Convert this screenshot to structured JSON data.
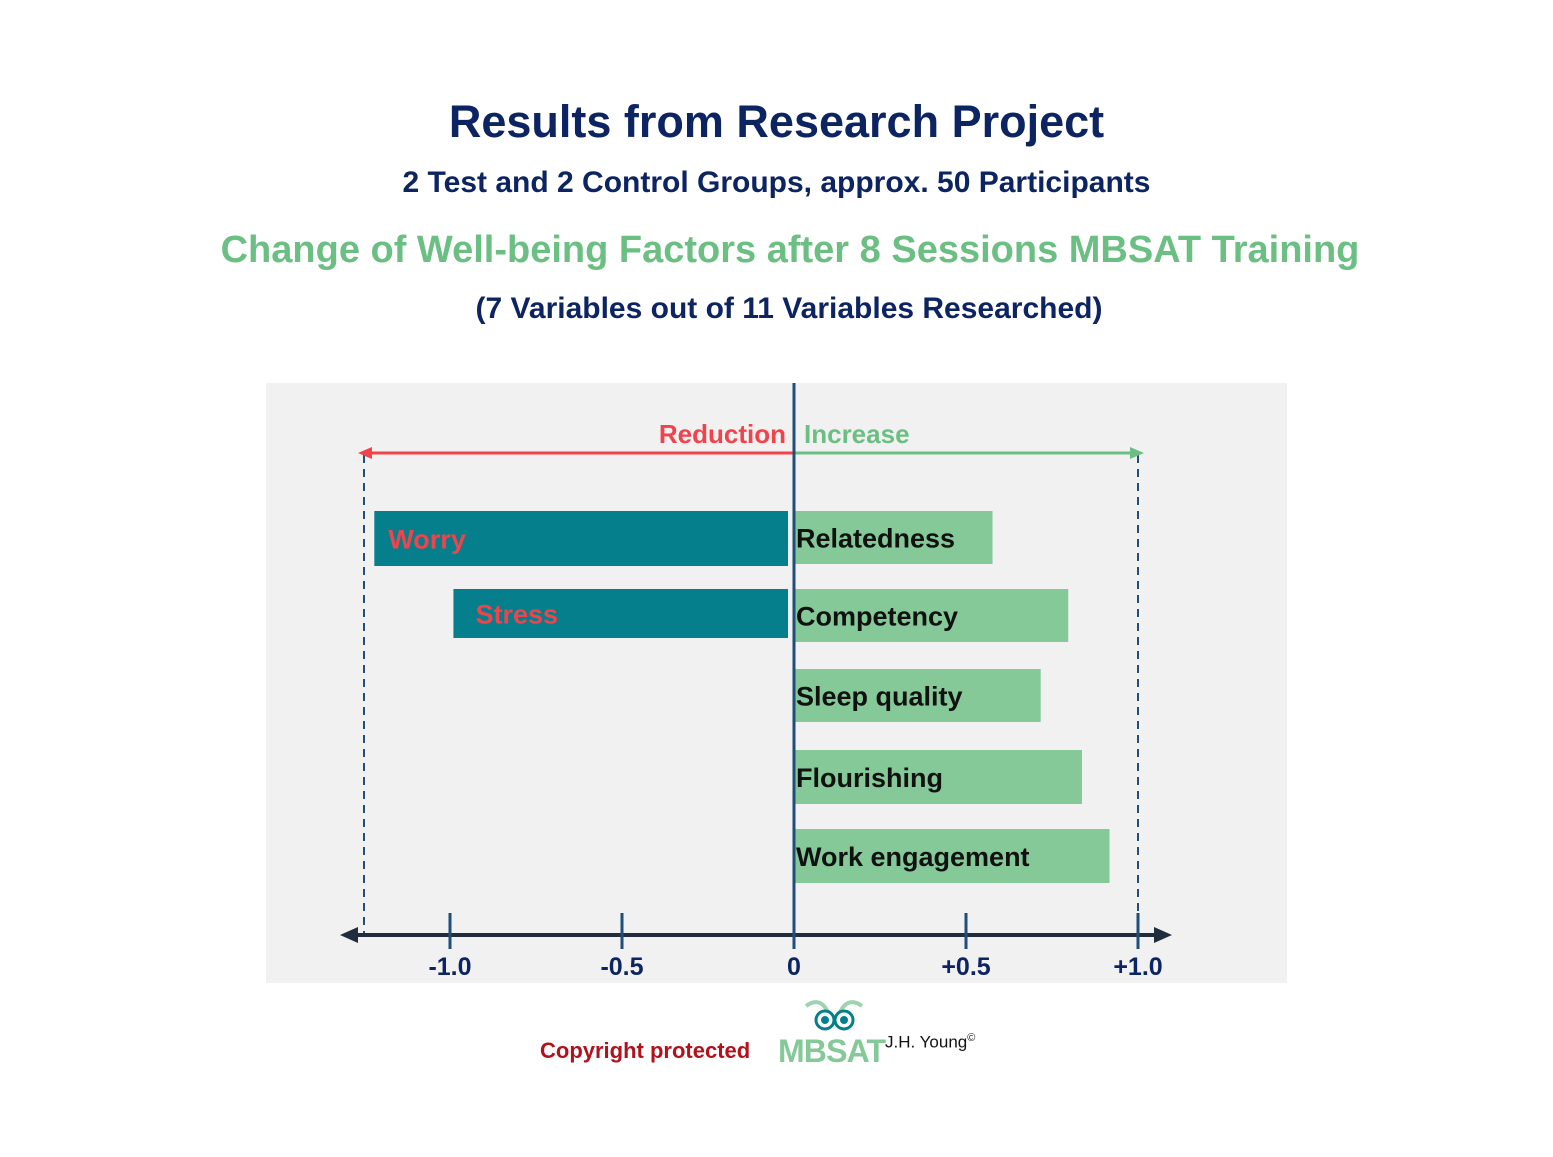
{
  "header": {
    "title": "Results from Research Project",
    "subtitle": "2 Test and 2 Control Groups, approx. 50 Participants",
    "heading": "Change of Well-being Factors after 8 Sessions MBSAT Training",
    "note": "(7 Variables out of 11 Variables Researched)"
  },
  "chart_data": {
    "type": "bar",
    "orientation": "horizontal",
    "categories": [
      "Worry",
      "Relatedness",
      "Stress",
      "Competency",
      "Sleep quality",
      "Flourishing",
      "Work engagement"
    ],
    "values": [
      -1.22,
      0.58,
      -0.99,
      0.8,
      0.72,
      0.84,
      0.92
    ],
    "xlim": [
      -1.3,
      1.1
    ],
    "xticks": [
      -1.0,
      -0.5,
      0,
      0.5,
      1.0
    ],
    "xtick_labels": [
      "-1.0",
      "-0.5",
      "0",
      "+0.5",
      "+1.0"
    ],
    "reference_lines": [
      -1.25,
      1.0
    ],
    "direction_labels": {
      "negative": "Reduction",
      "positive": "Increase"
    },
    "colors": {
      "negative": "#047f8b",
      "positive": "#84c997",
      "negative_label": "#f0434c",
      "positive_label": "#111111",
      "reduction": "#f0434c",
      "increase": "#6cbf82",
      "axis": "#1f2d3d",
      "background": "#f1f1f1"
    },
    "grid": false,
    "legend": "none"
  },
  "footer": {
    "copyright": "Copyright protected",
    "logo_text": "MBSAT",
    "author": "J.H. Young",
    "author_mark": "©"
  }
}
